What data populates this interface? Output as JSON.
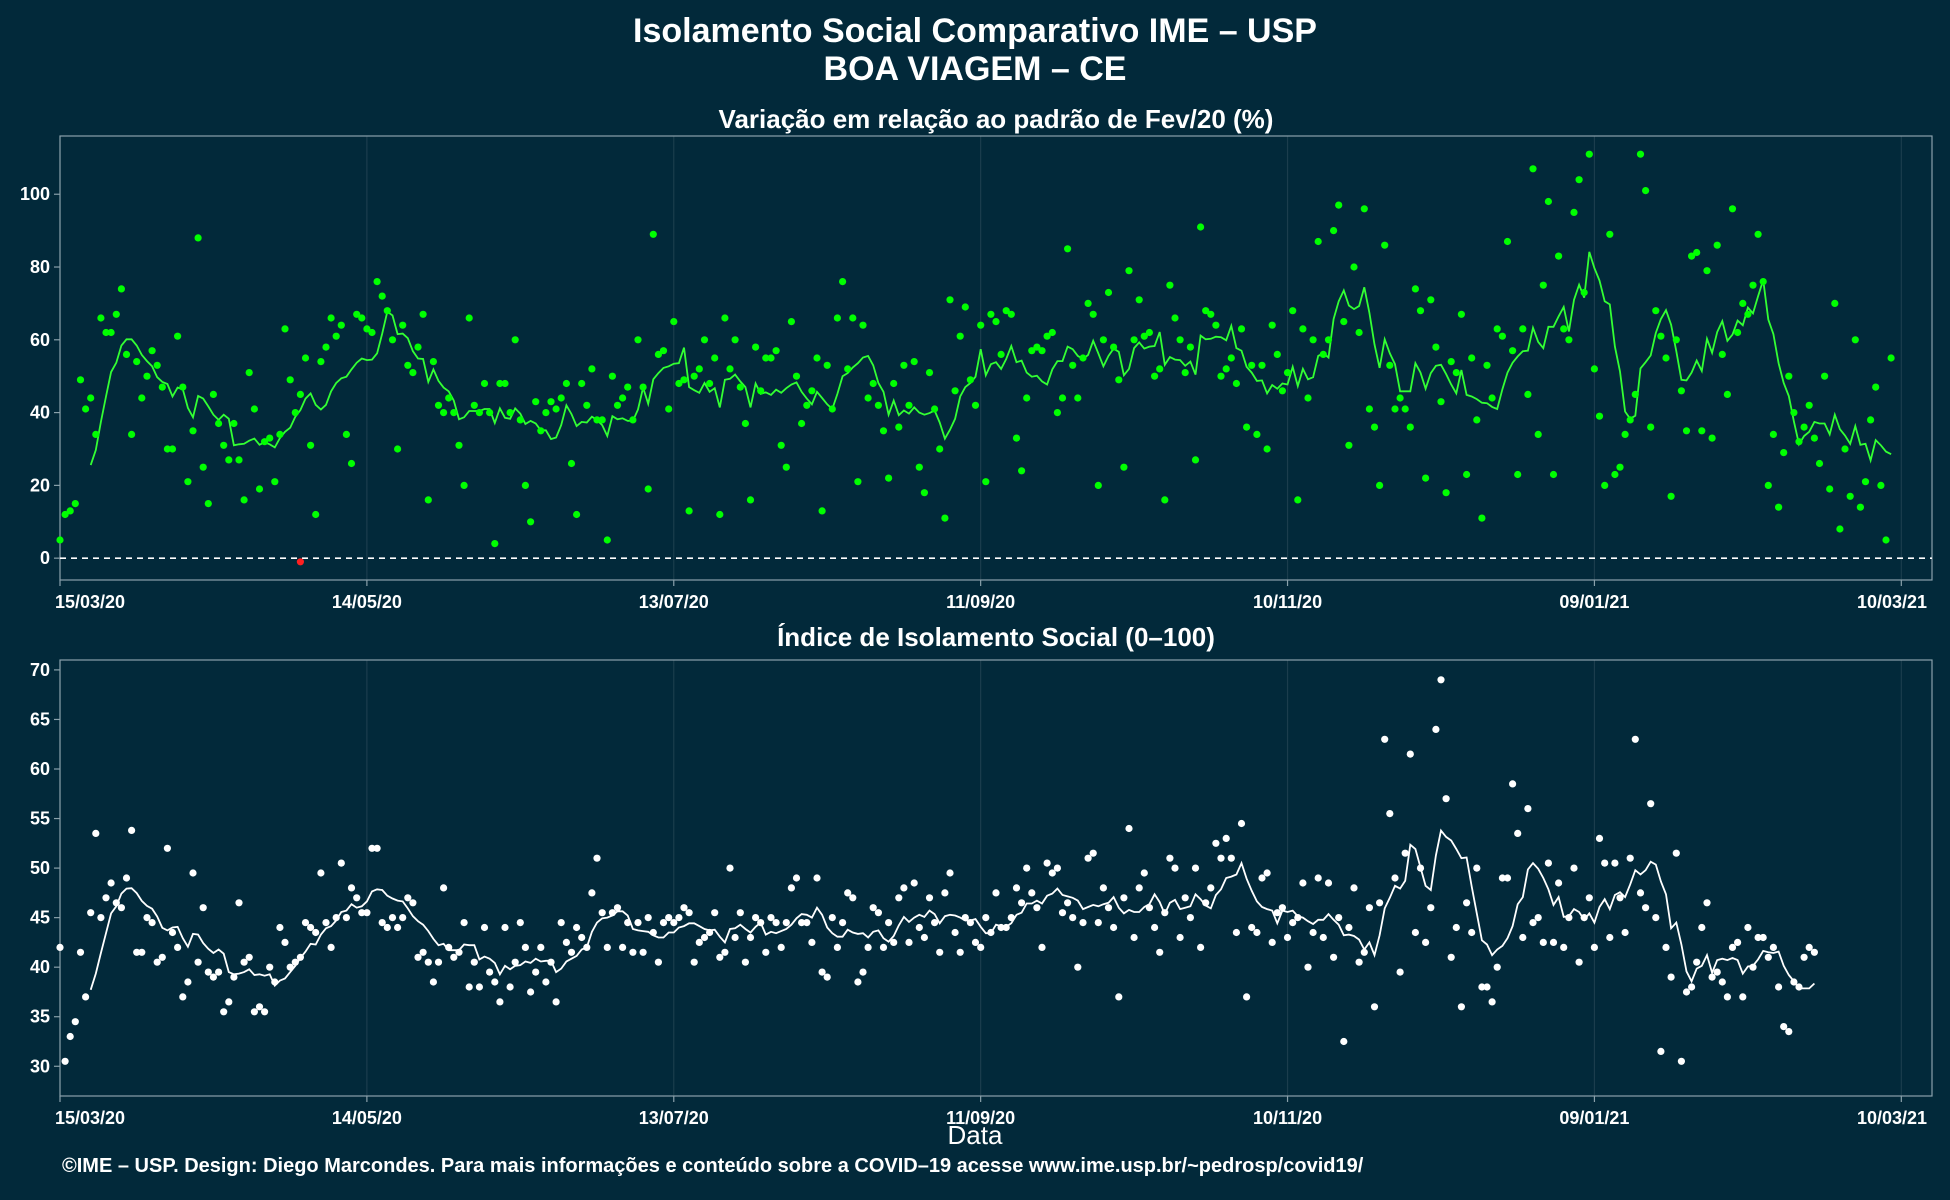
{
  "title": "Isolamento Social Comparativo IME – USP",
  "subtitle": "BOA VIAGEM – CE",
  "xlabel": "Data",
  "caption": "©IME – USP. Design: Diego Marcondes. Para mais informações e conteúdo sobre a COVID–19 acesse www.ime.usp.br/~pedrosp/covid19/",
  "colors": {
    "background": "#02293a",
    "top_points": "#00ff00",
    "top_line": "#33ff33",
    "negative_point": "#ff2020",
    "bottom_points": "#ffffff",
    "grid": "#1b3d4d",
    "axis": "#8aa1ab"
  },
  "chart_data": [
    {
      "type": "scatter",
      "title": "Variação em relação ao padrão de Fev/20 (%)",
      "x_ticks": [
        "15/03/20",
        "14/05/20",
        "13/07/20",
        "11/09/20",
        "10/11/20",
        "09/01/21",
        "10/03/21"
      ],
      "x_tick_days": [
        0,
        60,
        120,
        180,
        240,
        300,
        360
      ],
      "x_range_days": [
        0,
        366
      ],
      "ylim": [
        -6,
        116
      ],
      "y_ticks": [
        0,
        20,
        40,
        60,
        80,
        100
      ],
      "reference_line": 0,
      "grid": true,
      "smoothed_line": "7-day moving average",
      "points": [
        5,
        12,
        13,
        15,
        49,
        41,
        44,
        34,
        66,
        62,
        62,
        67,
        74,
        56,
        34,
        54,
        44,
        50,
        57,
        53,
        47,
        30,
        30,
        61,
        47,
        21,
        35,
        88,
        25,
        15,
        45,
        37,
        31,
        27,
        37,
        27,
        16,
        51,
        41,
        19,
        32,
        33,
        21,
        34,
        63,
        49,
        40,
        45,
        55,
        31,
        12,
        54,
        58,
        66,
        61,
        64,
        34,
        26,
        67,
        66,
        63,
        62,
        76,
        72,
        68,
        60,
        30,
        64,
        53,
        51,
        58,
        67,
        16,
        54,
        42,
        40,
        44,
        40,
        31,
        20,
        66,
        42,
        40,
        48,
        40,
        4,
        48,
        48,
        40,
        60,
        38,
        20,
        10,
        43,
        35,
        40,
        43,
        41,
        44,
        48,
        26,
        12,
        48,
        42,
        52,
        38,
        38,
        5,
        50,
        42,
        44,
        47,
        38,
        60,
        47,
        19,
        89,
        56,
        57,
        41,
        65,
        48,
        49,
        13,
        50,
        52,
        60,
        48,
        55,
        12,
        66,
        52,
        60,
        47,
        37,
        16,
        58,
        46,
        55,
        55,
        57,
        31,
        25,
        65,
        50,
        37,
        42,
        46,
        55,
        13,
        53,
        41,
        66,
        76,
        52,
        66,
        21,
        64,
        44,
        48,
        42,
        35,
        22,
        48,
        36,
        53,
        42,
        54,
        25,
        18,
        51,
        41,
        30,
        11,
        71,
        46,
        61,
        69,
        49,
        42,
        64,
        21,
        67,
        65,
        56,
        68,
        67,
        33,
        24,
        44,
        57,
        58,
        57,
        61,
        62,
        40,
        44,
        85,
        53,
        44,
        55,
        70,
        67,
        20,
        60,
        73,
        58,
        49,
        25,
        79,
        60,
        71,
        61,
        62,
        50,
        52,
        16,
        75,
        66,
        60,
        51,
        58,
        27,
        91,
        68,
        67,
        64,
        50,
        52,
        55,
        48,
        63,
        36,
        53,
        34,
        53,
        30,
        64,
        56,
        46,
        51,
        68,
        16,
        63,
        44,
        60,
        87,
        56,
        60,
        90,
        97,
        65,
        31,
        80,
        62,
        96,
        41,
        36,
        20,
        86,
        53,
        41,
        44,
        41,
        36,
        74,
        68,
        22,
        71,
        58,
        43,
        18,
        54,
        51,
        67,
        23,
        55,
        38,
        11,
        53,
        44,
        63,
        61,
        87,
        57,
        23,
        63,
        45,
        107,
        34,
        75,
        98,
        23,
        83,
        63,
        60,
        95,
        104,
        73,
        111,
        52,
        39,
        20,
        89,
        23,
        25,
        34,
        38,
        45,
        111,
        101,
        36,
        68,
        61,
        55,
        17,
        60,
        46,
        35,
        83,
        84,
        35,
        79,
        33,
        86,
        56,
        45,
        96,
        62,
        70,
        67,
        75,
        89,
        76,
        20,
        34,
        14,
        29,
        50,
        40,
        32,
        36,
        42,
        33,
        26,
        50,
        19,
        70,
        8,
        30,
        17,
        60,
        14,
        21,
        38,
        47,
        20,
        5,
        55
      ],
      "negative_points": [
        {
          "day": 47,
          "value": -1
        }
      ]
    },
    {
      "type": "scatter",
      "title": "Índice de Isolamento Social (0–100)",
      "x_ticks": [
        "15/03/20",
        "14/05/20",
        "13/07/20",
        "11/09/20",
        "10/11/20",
        "09/01/21",
        "10/03/21"
      ],
      "x_tick_days": [
        0,
        60,
        120,
        180,
        240,
        300,
        360
      ],
      "x_range_days": [
        0,
        366
      ],
      "ylim": [
        27,
        71
      ],
      "y_ticks": [
        30,
        35,
        40,
        45,
        50,
        55,
        60,
        65,
        70
      ],
      "grid": true,
      "smoothed_line": "7-day moving average",
      "points": [
        42,
        30.5,
        33,
        34.5,
        41.5,
        37,
        45.5,
        53.5,
        45,
        47,
        48.5,
        46.5,
        46,
        49,
        53.8,
        41.5,
        41.5,
        45,
        44.5,
        40.5,
        41,
        52,
        43.5,
        42,
        37,
        38.5,
        49.5,
        40.5,
        46,
        39.5,
        39,
        39.5,
        35.5,
        36.5,
        39,
        46.5,
        40.5,
        41,
        35.5,
        36,
        35.5,
        40,
        38.5,
        44,
        42.5,
        40,
        40.5,
        41,
        44.5,
        44,
        43.5,
        49.5,
        44.5,
        42,
        45,
        50.5,
        45,
        48,
        47,
        45.5,
        45.5,
        52,
        52,
        44.5,
        44,
        45,
        44,
        45,
        47,
        46.5,
        41,
        41.5,
        40.5,
        38.5,
        40.5,
        48,
        42,
        41,
        41.5,
        44.5,
        38,
        40.5,
        38,
        44,
        39.5,
        38.5,
        36.5,
        44,
        38,
        40.5,
        44.5,
        42,
        37.5,
        39.5,
        42,
        38.5,
        40.5,
        36.5,
        44.5,
        42.5,
        41.5,
        44,
        43,
        42,
        47.5,
        51,
        45.5,
        42,
        45.5,
        46,
        42,
        44.5,
        41.5,
        44.5,
        41.5,
        45,
        43.5,
        40.5,
        44.5,
        45,
        44.5,
        45,
        46,
        45.5,
        40.5,
        42.5,
        43,
        43.5,
        45.5,
        41,
        41.5,
        50,
        43,
        45.5,
        40.5,
        43,
        45,
        44.5,
        41.5,
        45,
        44.5,
        42,
        44.5,
        48,
        49,
        44.5,
        44.5,
        42.5,
        49,
        39.5,
        39,
        45,
        42,
        44.5,
        47.5,
        47,
        38.5,
        39.5,
        42,
        46,
        45.5,
        42,
        44.5,
        42.5,
        47,
        48,
        42.5,
        48.5,
        44,
        43,
        47,
        44.5,
        41.5,
        47.5,
        49.5,
        43.5,
        41.5,
        45,
        44.5,
        42.5,
        42,
        45,
        43.5,
        47.5,
        44,
        44,
        45,
        48,
        46.5,
        50,
        47.5,
        46,
        42,
        50.5,
        49.5,
        50,
        45.5,
        46.5,
        45,
        40,
        44.5,
        51,
        51.5,
        44.5,
        48,
        46,
        44,
        37,
        47,
        54,
        43,
        48,
        49.5,
        46,
        44,
        41.5,
        45.5,
        51,
        50,
        43,
        47,
        45,
        50,
        42,
        46.5,
        48,
        52.5,
        51,
        53,
        51,
        43.5,
        54.5,
        37,
        44,
        43.5,
        49,
        49.5,
        42.5,
        45.5,
        46,
        43,
        44.5,
        45,
        48.5,
        40,
        43.5,
        49,
        43,
        48.5,
        41,
        45,
        32.5,
        44,
        48,
        40.5,
        41.5,
        46,
        36,
        46.5,
        63,
        55.5,
        49,
        39.5,
        51.5,
        61.5,
        43.5,
        50,
        42.5,
        46,
        64,
        69,
        57,
        41,
        44,
        36,
        46.5,
        43.5,
        50,
        38,
        38,
        36.5,
        40,
        49,
        49,
        58.5,
        53.5,
        43,
        56,
        44.5,
        45,
        42.5,
        50.5,
        42.5,
        48.5,
        42,
        45,
        50,
        40.5,
        45,
        47,
        42,
        53,
        50.5,
        43,
        50.5,
        47,
        43.5,
        51,
        63,
        47.5,
        46,
        56.5,
        45,
        31.5,
        42,
        39,
        51.5,
        30.5,
        37.5,
        38,
        40.5,
        44,
        46.5,
        39,
        39.5,
        38.5,
        37,
        42,
        42.5,
        37,
        44,
        40,
        43,
        43,
        41,
        42,
        38,
        34,
        33.5,
        38.5,
        38,
        41,
        42,
        41.5
      ]
    }
  ]
}
